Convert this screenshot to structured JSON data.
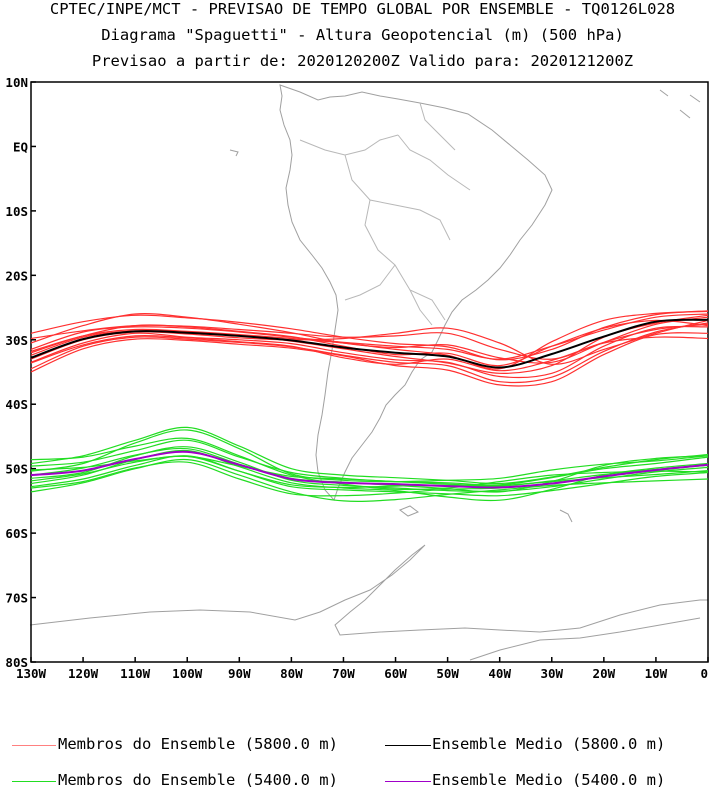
{
  "titles": {
    "line1": "CPTEC/INPE/MCT - PREVISAO DE TEMPO GLOBAL POR ENSEMBLE - TQ0126L028",
    "line2": "Diagrama \"Spaguetti\" - Altura Geopotencial (m) (500 hPa)",
    "line3": "Previsao a partir de: 2020120200Z  Valido para: 2020121200Z"
  },
  "chart_data": {
    "type": "line",
    "projection": "lat-lon map",
    "xlim": [
      -130,
      0
    ],
    "ylim": [
      -80,
      10
    ],
    "lat_ticks": [
      {
        "value": 10,
        "label": "10N"
      },
      {
        "value": 0,
        "label": "EQ"
      },
      {
        "value": -10,
        "label": "10S"
      },
      {
        "value": -20,
        "label": "20S"
      },
      {
        "value": -30,
        "label": "30S"
      },
      {
        "value": -40,
        "label": "40S"
      },
      {
        "value": -50,
        "label": "50S"
      },
      {
        "value": -60,
        "label": "60S"
      },
      {
        "value": -70,
        "label": "70S"
      },
      {
        "value": -80,
        "label": "80S"
      }
    ],
    "lon_ticks": [
      {
        "value": -130,
        "label": "130W"
      },
      {
        "value": -120,
        "label": "120W"
      },
      {
        "value": -110,
        "label": "110W"
      },
      {
        "value": -100,
        "label": "100W"
      },
      {
        "value": -90,
        "label": "90W"
      },
      {
        "value": -80,
        "label": "80W"
      },
      {
        "value": -70,
        "label": "70W"
      },
      {
        "value": -60,
        "label": "60W"
      },
      {
        "value": -50,
        "label": "50W"
      },
      {
        "value": -40,
        "label": "40W"
      },
      {
        "value": -30,
        "label": "30W"
      },
      {
        "value": -20,
        "label": "20W"
      },
      {
        "value": -10,
        "label": "10W"
      },
      {
        "value": 0,
        "label": "0"
      }
    ],
    "lons": [
      -130,
      -120,
      -110,
      -100,
      -90,
      -80,
      -70,
      -60,
      -50,
      -40,
      -30,
      -20,
      -10,
      0
    ],
    "series": [
      {
        "name": "Ensemble Medio (5800.0 m)",
        "color": "#000000",
        "lats": [
          -32.8,
          -29.9,
          -28.7,
          -28.9,
          -29.4,
          -30.1,
          -31.2,
          -32.0,
          -32.6,
          -34.3,
          -32.2,
          -29.5,
          -27.2,
          -26.9
        ]
      },
      {
        "name": "Ensemble Medio (5400.0 m)",
        "color": "#a000c8",
        "lats": [
          -51.0,
          -50.3,
          -48.5,
          -47.4,
          -49.4,
          -51.6,
          -52.2,
          -52.4,
          -52.7,
          -52.9,
          -52.3,
          -51.2,
          -50.2,
          -49.4
        ]
      },
      {
        "name": "member-5800-1",
        "color": "#ff3030",
        "lats": [
          -33.5,
          -30.5,
          -29.0,
          -29.6,
          -30.0,
          -30.6,
          -32.0,
          -33.1,
          -33.5,
          -35.7,
          -35.2,
          -31.0,
          -28.2,
          -28.0
        ]
      },
      {
        "name": "member-5800-2",
        "color": "#ff3030",
        "lats": [
          -31.5,
          -28.8,
          -28.0,
          -28.2,
          -28.8,
          -29.6,
          -30.4,
          -31.0,
          -31.5,
          -33.0,
          -31.0,
          -28.5,
          -26.5,
          -26.0
        ]
      },
      {
        "name": "member-5800-3",
        "color": "#ff3030",
        "lats": [
          -34.5,
          -31.0,
          -29.6,
          -29.9,
          -30.4,
          -31.1,
          -32.4,
          -33.5,
          -34.0,
          -36.5,
          -35.8,
          -31.8,
          -28.8,
          -27.4
        ]
      },
      {
        "name": "member-5800-4",
        "color": "#ff3030",
        "lats": [
          -29.0,
          -27.2,
          -26.2,
          -26.6,
          -27.3,
          -28.3,
          -29.6,
          -30.6,
          -31.1,
          -33.1,
          -31.5,
          -28.1,
          -26.1,
          -25.5
        ]
      },
      {
        "name": "member-5800-5",
        "color": "#ff3030",
        "lats": [
          -32.0,
          -29.4,
          -27.8,
          -28.0,
          -28.7,
          -29.5,
          -31.0,
          -32.3,
          -32.1,
          -34.0,
          -31.0,
          -28.2,
          -27.0,
          -27.8
        ]
      },
      {
        "name": "member-5800-6",
        "color": "#ff3030",
        "lats": [
          -33.0,
          -30.0,
          -28.8,
          -29.1,
          -29.7,
          -30.0,
          -29.8,
          -29.0,
          -28.2,
          -30.5,
          -33.8,
          -31.5,
          -29.0,
          -27.0
        ]
      },
      {
        "name": "member-5800-7",
        "color": "#ff3030",
        "lats": [
          -30.5,
          -27.8,
          -26.0,
          -26.5,
          -27.6,
          -28.9,
          -30.5,
          -31.2,
          -30.8,
          -32.8,
          -33.5,
          -30.4,
          -27.6,
          -26.5
        ]
      },
      {
        "name": "member-5800-8",
        "color": "#ff3030",
        "lats": [
          -35.0,
          -31.4,
          -29.9,
          -30.1,
          -30.7,
          -31.3,
          -32.5,
          -34.0,
          -34.7,
          -37.0,
          -36.5,
          -32.3,
          -29.2,
          -29.0
        ]
      },
      {
        "name": "member-5800-9",
        "color": "#ff3030",
        "lats": [
          -31.8,
          -29.4,
          -28.4,
          -28.7,
          -29.2,
          -29.8,
          -30.5,
          -31.5,
          -32.4,
          -34.5,
          -30.3,
          -27.0,
          -25.9,
          -25.6
        ]
      },
      {
        "name": "member-5800-10",
        "color": "#ff3030",
        "lats": [
          -33.6,
          -30.8,
          -29.4,
          -29.7,
          -30.3,
          -31.0,
          -32.8,
          -33.8,
          -33.0,
          -34.8,
          -33.2,
          -30.4,
          -28.4,
          -27.6
        ]
      },
      {
        "name": "member-5800-11",
        "color": "#ff3030",
        "lats": [
          -29.8,
          -28.6,
          -27.8,
          -27.9,
          -28.4,
          -29.0,
          -29.6,
          -29.4,
          -29.0,
          -31.5,
          -33.0,
          -30.5,
          -29.6,
          -29.8
        ]
      },
      {
        "name": "member-5800-12",
        "color": "#ff3030",
        "lats": [
          -32.4,
          -29.6,
          -28.6,
          -28.8,
          -29.3,
          -30.2,
          -31.4,
          -32.6,
          -33.6,
          -35.2,
          -34.0,
          -29.6,
          -27.4,
          -26.2
        ]
      },
      {
        "name": "member-5400-1",
        "color": "#22dd22",
        "lats": [
          -51.5,
          -50.6,
          -48.0,
          -46.6,
          -49.0,
          -51.8,
          -52.6,
          -53.0,
          -53.4,
          -53.5,
          -52.8,
          -51.6,
          -50.5,
          -49.8
        ]
      },
      {
        "name": "member-5400-2",
        "color": "#22dd22",
        "lats": [
          -49.6,
          -49.0,
          -47.2,
          -45.6,
          -48.2,
          -50.6,
          -51.5,
          -52.0,
          -52.2,
          -52.5,
          -51.4,
          -50.0,
          -49.2,
          -48.2
        ]
      },
      {
        "name": "member-5400-3",
        "color": "#22dd22",
        "lats": [
          -52.8,
          -51.6,
          -49.5,
          -48.0,
          -50.4,
          -52.8,
          -53.3,
          -53.6,
          -53.9,
          -54.2,
          -53.4,
          -52.3,
          -51.2,
          -50.6
        ]
      },
      {
        "name": "member-5400-4",
        "color": "#22dd22",
        "lats": [
          -50.4,
          -49.2,
          -46.0,
          -44.0,
          -46.9,
          -50.8,
          -51.8,
          -52.0,
          -51.8,
          -51.5,
          -50.2,
          -49.3,
          -48.8,
          -48.0
        ]
      },
      {
        "name": "member-5400-5",
        "color": "#22dd22",
        "lats": [
          -53.6,
          -52.2,
          -50.0,
          -48.6,
          -51.0,
          -53.6,
          -55.0,
          -54.8,
          -54.0,
          -53.3,
          -52.6,
          -52.2,
          -51.9,
          -51.6
        ]
      },
      {
        "name": "member-5400-6",
        "color": "#22dd22",
        "lats": [
          -51.0,
          -49.9,
          -47.9,
          -46.9,
          -49.3,
          -51.5,
          -52.1,
          -52.6,
          -53.1,
          -53.6,
          -52.0,
          -49.5,
          -48.4,
          -48.0
        ]
      },
      {
        "name": "member-5400-7",
        "color": "#22dd22",
        "lats": [
          -48.6,
          -48.2,
          -46.5,
          -45.3,
          -48.0,
          -51.0,
          -52.4,
          -53.2,
          -53.0,
          -52.0,
          -51.0,
          -50.6,
          -50.4,
          -50.5
        ]
      },
      {
        "name": "member-5400-8",
        "color": "#22dd22",
        "lats": [
          -52.3,
          -51.0,
          -48.6,
          -47.2,
          -49.7,
          -52.2,
          -53.0,
          -53.4,
          -54.4,
          -54.9,
          -53.2,
          -51.0,
          -49.9,
          -49.2
        ]
      },
      {
        "name": "member-5400-9",
        "color": "#22dd22",
        "lats": [
          -50.2,
          -49.8,
          -48.8,
          -48.1,
          -49.6,
          -51.2,
          -51.6,
          -52.0,
          -52.4,
          -52.6,
          -52.0,
          -51.4,
          -50.9,
          -50.3
        ]
      },
      {
        "name": "member-5400-10",
        "color": "#22dd22",
        "lats": [
          -53.0,
          -52.0,
          -49.9,
          -49.0,
          -51.6,
          -53.9,
          -54.2,
          -53.8,
          -53.2,
          -53.0,
          -52.3,
          -51.2,
          -50.3,
          -49.4
        ]
      },
      {
        "name": "member-5400-11",
        "color": "#22dd22",
        "lats": [
          -49.2,
          -48.0,
          -45.6,
          -43.6,
          -46.5,
          -50.0,
          -51.0,
          -51.4,
          -51.8,
          -52.3,
          -51.3,
          -49.8,
          -48.6,
          -47.8
        ]
      },
      {
        "name": "member-5400-12",
        "color": "#22dd22",
        "lats": [
          -51.9,
          -50.8,
          -49.0,
          -48.1,
          -50.4,
          -52.5,
          -52.9,
          -52.7,
          -52.6,
          -52.7,
          -51.9,
          -50.9,
          -50.1,
          -49.5
        ]
      }
    ],
    "legend": [
      {
        "label": "Membros do Ensemble (5800.0 m)",
        "color": "#ff8080"
      },
      {
        "label": "Ensemble Medio (5800.0 m)",
        "color": "#000000"
      },
      {
        "label": "Membros do Ensemble (5400.0 m)",
        "color": "#22dd22"
      },
      {
        "label": "Ensemble Medio (5400.0 m)",
        "color": "#a000c8"
      }
    ]
  },
  "map_style": {
    "coastline_color": "#a0a0a0",
    "frame_color": "#000000"
  }
}
